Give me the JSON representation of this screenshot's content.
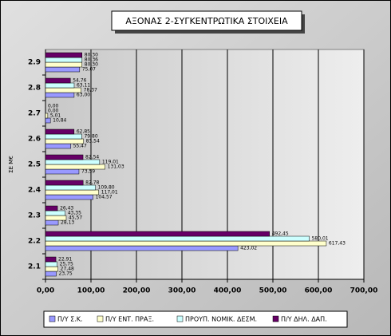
{
  "chart_data": {
    "type": "hbar",
    "title": "ΑΞΟΝΑΣ 2-ΣΥΓΚΕΝΤΡΩΤΙΚΑ ΣΤΟΙΧΕΙΑ",
    "y_label": "ΣΕ Μ€",
    "categories": [
      "2.1",
      "2.2",
      "2.3",
      "2.4",
      "2.5",
      "2.6",
      "2.7",
      "2.8",
      "2.9"
    ],
    "series": [
      {
        "name": "Π/Υ Σ.Κ.",
        "color": "#9999ff",
        "values": [
          23.75,
          423.02,
          28.13,
          104.57,
          73.59,
          55.47,
          10.84,
          63.0,
          75.07
        ],
        "value_labels": [
          "23,75",
          "423,02",
          "28,13",
          "104,57",
          "73,59",
          "55,47",
          "10,84",
          "63,00",
          "75,07"
        ]
      },
      {
        "name": "Π/Υ ΕΝΤ. ΠΡΑΞ.",
        "color": "#ffffcc",
        "values": [
          27.48,
          617.43,
          45.57,
          117.01,
          131.03,
          83.54,
          5.01,
          78.37,
          80.3
        ],
        "value_labels": [
          "27,48",
          "617,43",
          "45,57",
          "117,01",
          "131,03",
          "83,54",
          "5,01",
          "78,37",
          "80,30"
        ]
      },
      {
        "name": "ΠΡΟΥΠ. ΝΟΜΙΚ. ΔΕΣΜ.",
        "color": "#ccffff",
        "values": [
          25.75,
          580.01,
          43.35,
          109.8,
          119.01,
          79.8,
          0.0,
          63.11,
          80.36
        ],
        "value_labels": [
          "25,75",
          "580,01",
          "43,35",
          "109,80",
          "119,01",
          "79,80",
          "0,00",
          "63,11",
          "80,36"
        ]
      },
      {
        "name": "Π/Υ ΔΗΛ. ΔΑΠ.",
        "color": "#660066",
        "values": [
          22.91,
          492.45,
          26.43,
          82.78,
          82.54,
          62.85,
          0.0,
          54.76,
          80.3
        ],
        "value_labels": [
          "22,91",
          "492,45",
          "26,43",
          "82,78",
          "82,54",
          "62,85",
          "0,00",
          "54,76",
          "80,30"
        ]
      }
    ],
    "xlim": [
      0,
      700
    ],
    "xticks": [
      {
        "value": 0,
        "label": "0,00"
      },
      {
        "value": 100,
        "label": "100,00"
      },
      {
        "value": 200,
        "label": "200,00"
      },
      {
        "value": 300,
        "label": "300,00"
      },
      {
        "value": 400,
        "label": "400,00"
      },
      {
        "value": 500,
        "label": "500,00"
      },
      {
        "value": 600,
        "label": "600,00"
      },
      {
        "value": 700,
        "label": "700,00"
      }
    ],
    "grid": true,
    "legend": "bottom"
  }
}
